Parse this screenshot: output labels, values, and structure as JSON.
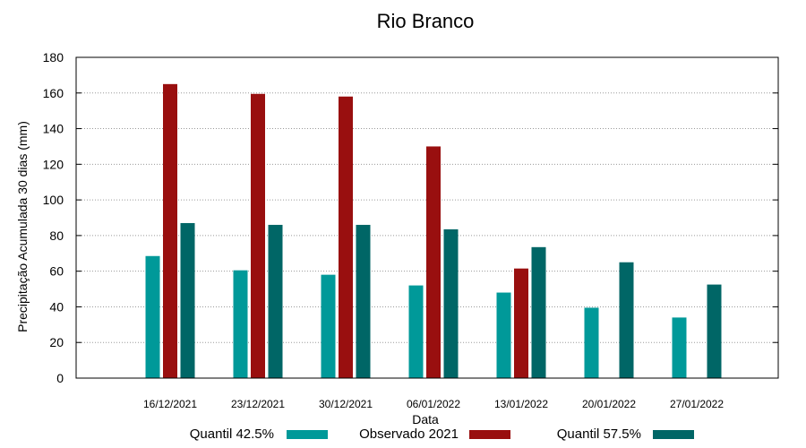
{
  "chart_data": {
    "type": "bar",
    "title": "Rio Branco",
    "xlabel": "Data",
    "ylabel": "Precipitação Acumulada 30 dias (mm)",
    "ylim": [
      0,
      180
    ],
    "yticks": [
      "0",
      "20",
      "40",
      "60",
      "80",
      "100",
      "120",
      "140",
      "160",
      "180"
    ],
    "grid": true,
    "legend": "bottom",
    "categories": [
      "16/12/2021",
      "23/12/2021",
      "30/12/2021",
      "06/01/2022",
      "13/01/2022",
      "20/01/2022",
      "27/01/2022"
    ],
    "series": [
      {
        "name": "Quantil 42.5%",
        "color": "#009999",
        "values": [
          68.5,
          60.5,
          58,
          52,
          48,
          39.5,
          34
        ]
      },
      {
        "name": "Observado 2021",
        "color": "#990f0f",
        "values": [
          165,
          159.5,
          158,
          130,
          61.5,
          null,
          null
        ]
      },
      {
        "name": "Quantil 57.5%",
        "color": "#006666",
        "values": [
          87,
          86,
          86,
          83.5,
          73.5,
          65,
          52.5
        ]
      }
    ]
  }
}
